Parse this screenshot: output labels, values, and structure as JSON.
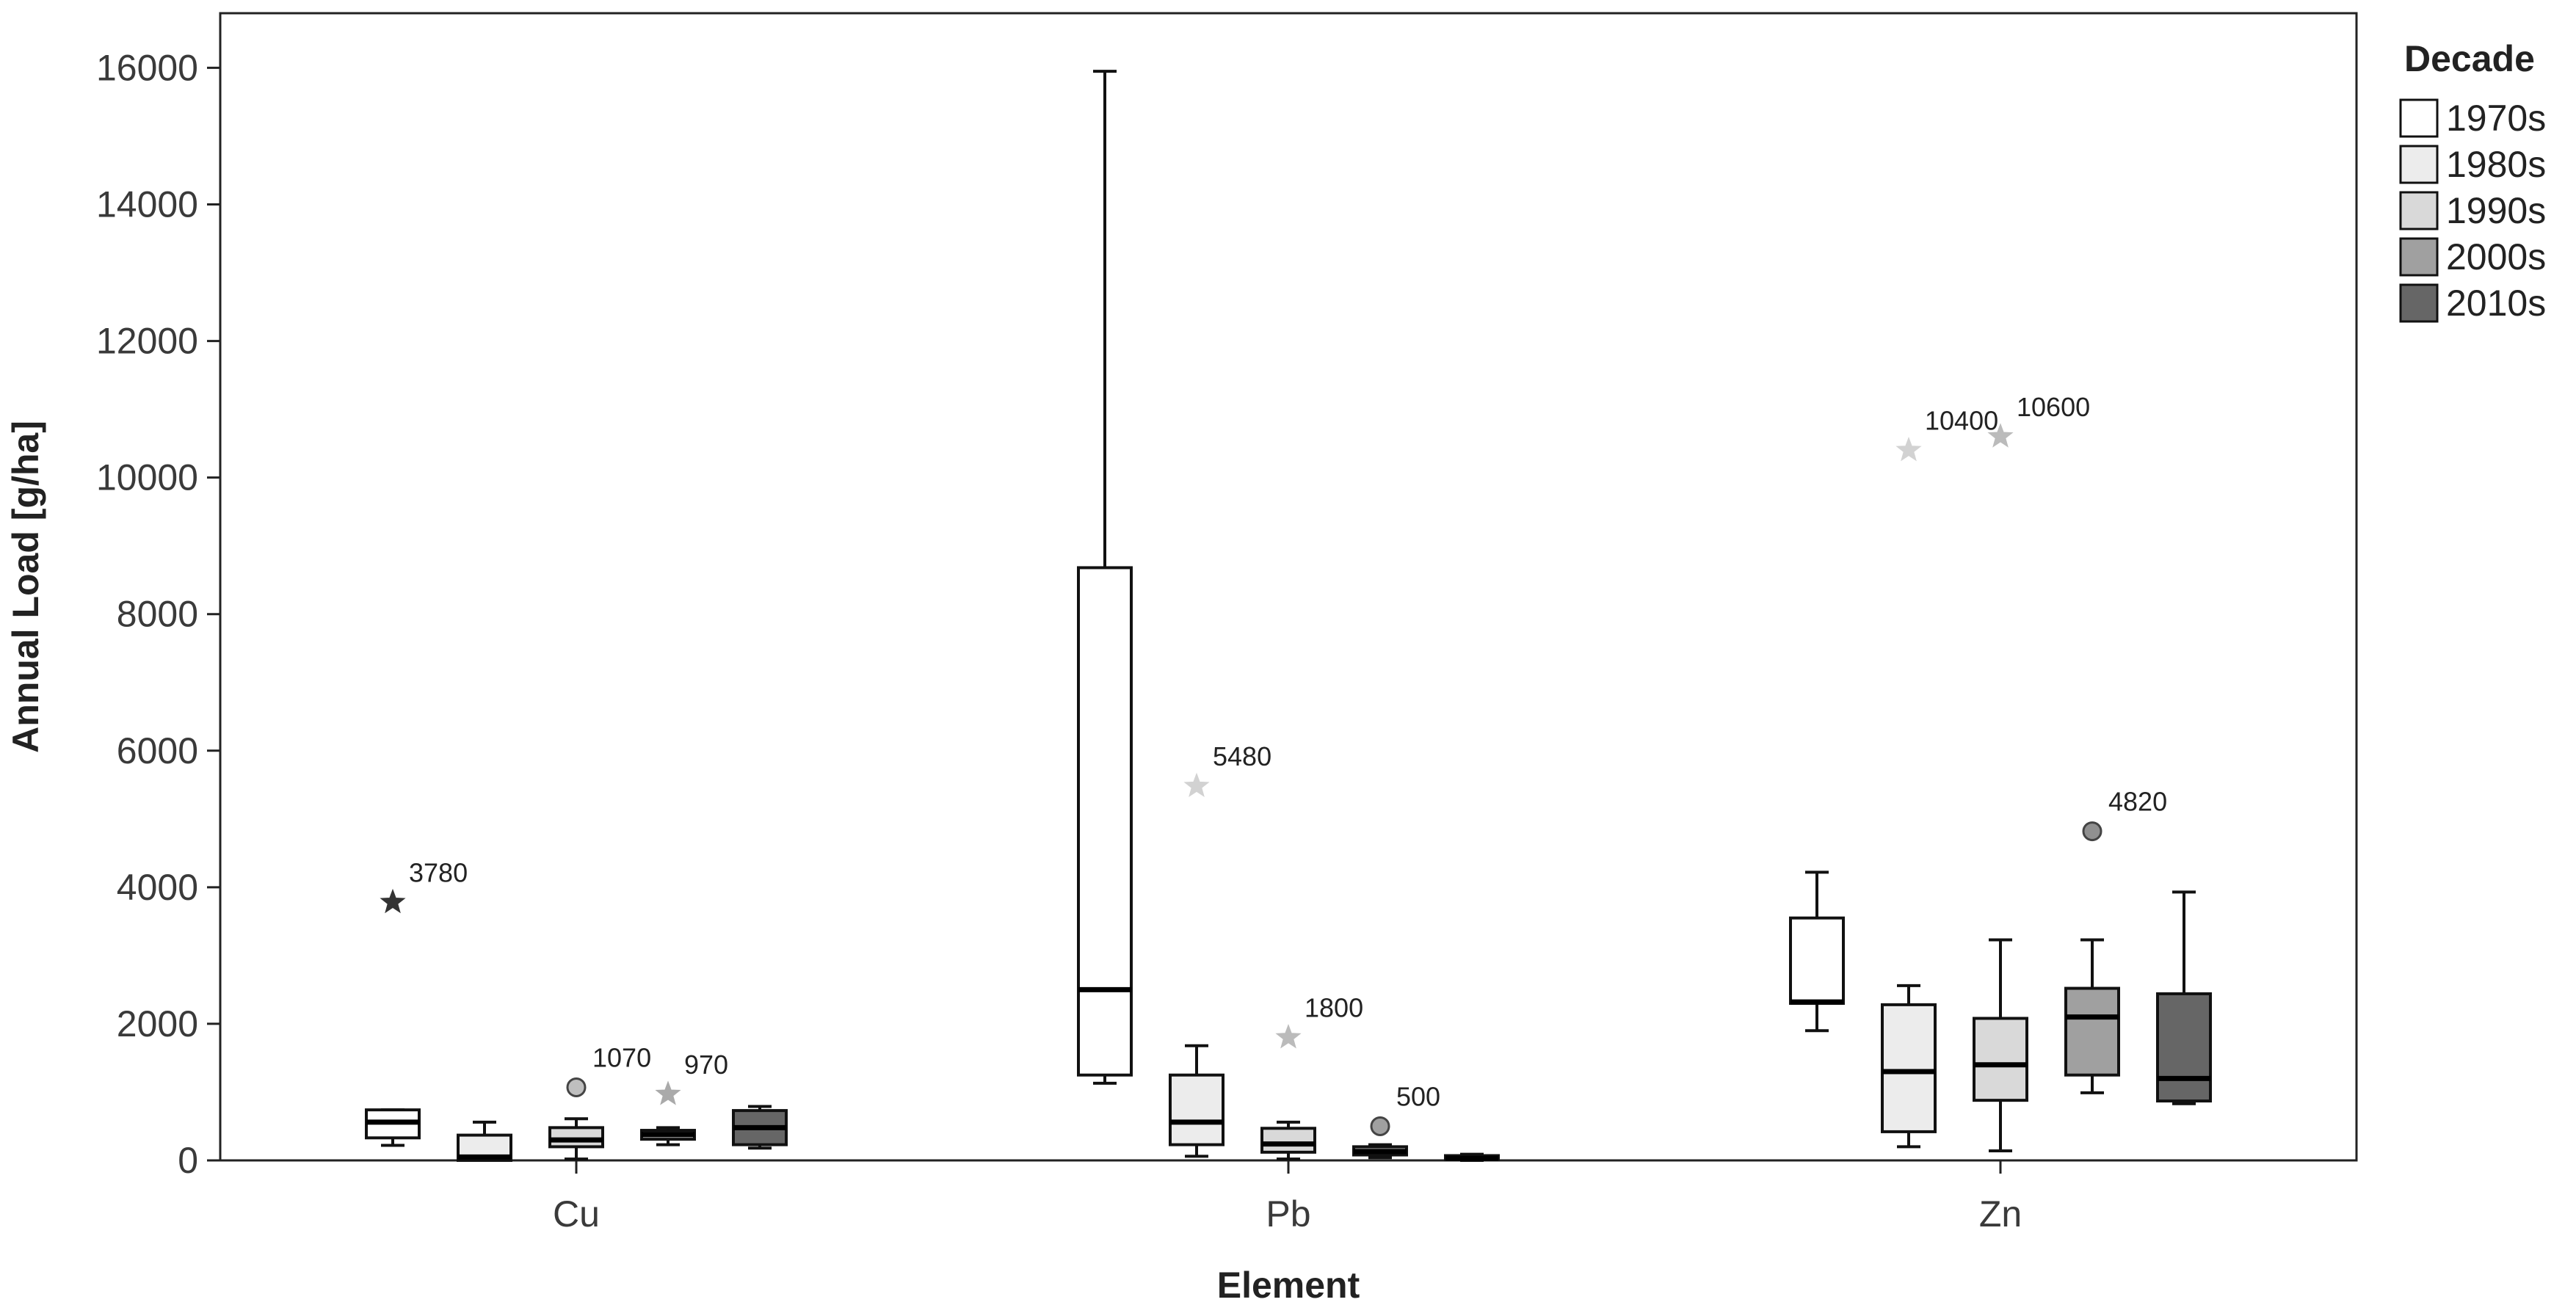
{
  "chart_data": {
    "type": "boxplot",
    "xlabel": "Element",
    "ylabel": "Annual Load [g/ha]",
    "ylim": [
      0,
      16800
    ],
    "yticks": [
      0,
      2000,
      4000,
      6000,
      8000,
      10000,
      12000,
      14000,
      16000
    ],
    "categories": [
      "Cu",
      "Pb",
      "Zn"
    ],
    "legend": {
      "title": "Decade",
      "placement": "right",
      "entries": [
        "1970s",
        "1980s",
        "1990s",
        "2000s",
        "2010s"
      ]
    },
    "grid": false,
    "series": [
      {
        "name": "1970s",
        "color": "#ffffff",
        "boxes": [
          {
            "whisker_low": 220,
            "q1": 330,
            "median": 560,
            "q3": 740,
            "whisker_high": 740
          },
          {
            "whisker_low": 1130,
            "q1": 1250,
            "median": 2500,
            "q3": 8680,
            "whisker_high": 15950
          },
          {
            "whisker_low": 1900,
            "q1": 2300,
            "median": 2320,
            "q3": 3550,
            "whisker_high": 4220
          }
        ],
        "outliers": [
          {
            "category": "Cu",
            "value": 3780,
            "marker": "star",
            "color": "#333333",
            "label": "3780"
          }
        ]
      },
      {
        "name": "1980s",
        "color": "#ececec",
        "boxes": [
          {
            "whisker_low": 0,
            "q1": 0,
            "median": 50,
            "q3": 370,
            "whisker_high": 560
          },
          {
            "whisker_low": 60,
            "q1": 230,
            "median": 560,
            "q3": 1250,
            "whisker_high": 1680
          },
          {
            "whisker_low": 200,
            "q1": 420,
            "median": 1300,
            "q3": 2280,
            "whisker_high": 2560
          }
        ],
        "outliers": [
          {
            "category": "Pb",
            "value": 5480,
            "marker": "star",
            "color": "#d2d2d2",
            "label": "5480"
          },
          {
            "category": "Zn",
            "value": 10400,
            "marker": "star",
            "color": "#d2d2d2",
            "label": "10400"
          }
        ]
      },
      {
        "name": "1990s",
        "color": "#d9d9d9",
        "boxes": [
          {
            "whisker_low": 20,
            "q1": 200,
            "median": 300,
            "q3": 480,
            "whisker_high": 610
          },
          {
            "whisker_low": 20,
            "q1": 120,
            "median": 240,
            "q3": 470,
            "whisker_high": 560
          },
          {
            "whisker_low": 140,
            "q1": 880,
            "median": 1400,
            "q3": 2080,
            "whisker_high": 3230
          }
        ],
        "outliers": [
          {
            "category": "Cu",
            "value": 1070,
            "marker": "circle",
            "color": "#bfbfbf",
            "label": "1070"
          },
          {
            "category": "Pb",
            "value": 1800,
            "marker": "star",
            "color": "#bbbbbb",
            "label": "1800"
          },
          {
            "category": "Zn",
            "value": 10600,
            "marker": "star",
            "color": "#bbbbbb",
            "label": "10600"
          }
        ]
      },
      {
        "name": "2000s",
        "color": "#a0a0a0",
        "boxes": [
          {
            "whisker_low": 230,
            "q1": 310,
            "median": 380,
            "q3": 440,
            "whisker_high": 480
          },
          {
            "whisker_low": 40,
            "q1": 80,
            "median": 130,
            "q3": 200,
            "whisker_high": 230
          },
          {
            "whisker_low": 990,
            "q1": 1250,
            "median": 2100,
            "q3": 2520,
            "whisker_high": 3230
          }
        ],
        "outliers": [
          {
            "category": "Cu",
            "value": 970,
            "marker": "star",
            "color": "#aaaaaa",
            "label": "970"
          },
          {
            "category": "Pb",
            "value": 500,
            "marker": "circle",
            "color": "#a0a0a0",
            "label": "500"
          },
          {
            "category": "Zn",
            "value": 4820,
            "marker": "circle",
            "color": "#909090",
            "label": "4820"
          }
        ]
      },
      {
        "name": "2010s",
        "color": "#666666",
        "boxes": [
          {
            "whisker_low": 180,
            "q1": 230,
            "median": 480,
            "q3": 730,
            "whisker_high": 790
          },
          {
            "whisker_low": 0,
            "q1": 10,
            "median": 30,
            "q3": 70,
            "whisker_high": 90
          },
          {
            "whisker_low": 830,
            "q1": 870,
            "median": 1200,
            "q3": 2440,
            "whisker_high": 3930
          }
        ],
        "outliers": []
      }
    ]
  }
}
